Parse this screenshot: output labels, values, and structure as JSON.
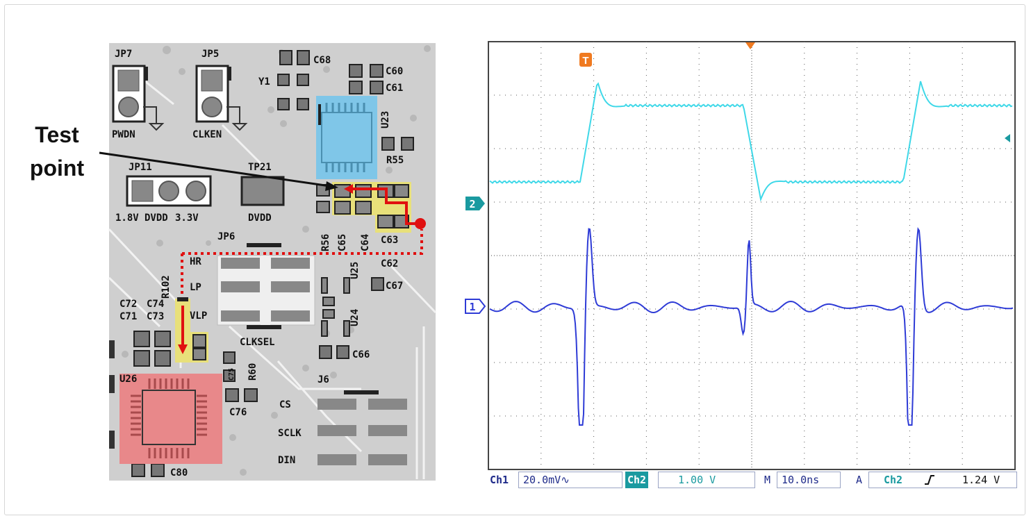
{
  "callout": {
    "line1": "Test",
    "line2": "point"
  },
  "board": {
    "refs": {
      "jp7": "JP7",
      "jp5": "JP5",
      "c68": "C68",
      "c60": "C60",
      "c61": "C61",
      "y1": "Y1",
      "pwdn": "PWDN",
      "clken": "CLKEN",
      "u23": "U23",
      "r55": "R55",
      "jp11": "JP11",
      "tp21": "TP21",
      "v18": "1.8V",
      "dvdd_a": "DVDD",
      "v33": "3.3V",
      "dvdd_b": "DVDD",
      "jp6": "JP6",
      "r56": "R56",
      "c65": "C65",
      "c64": "C64",
      "c63": "C63",
      "c62": "C62",
      "hr": "HR",
      "lp": "LP",
      "vlp": "VLP",
      "u25": "U25",
      "c67": "C67",
      "r102": "R102",
      "c72": "C72",
      "c74": "C74",
      "c71": "C71",
      "c73": "C73",
      "u24": "U24",
      "clksel": "CLKSEL",
      "c66": "C66",
      "u26": "U26",
      "r60": "R60",
      "c75": "C75",
      "c76": "C76",
      "j6": "J6",
      "cs": "CS",
      "sclk": "SCLK",
      "din": "DIN",
      "c80": "C80"
    },
    "colors": {
      "board": "#cfcfcf",
      "trace": "#f4f4f4",
      "highlight_yellow": "#e8e07a",
      "highlight_blue": "#7fc6e8",
      "highlight_red": "#e8888a",
      "arrow_red": "#e01010"
    }
  },
  "scope": {
    "trigger_marker": "T",
    "ch2_marker": "2",
    "ch1_marker": "1",
    "divisions": {
      "x": 10,
      "y": 8
    },
    "ch1": {
      "label": "Ch1",
      "scale": "20.0mV",
      "coupling_icon": "ac-coupling-icon",
      "color": "#2e3bd6"
    },
    "ch2": {
      "label": "Ch2",
      "scale": "1.00 V",
      "color": "#36d6e6"
    },
    "timebase": {
      "label": "M",
      "value": "10.0ns"
    },
    "trigger": {
      "label": "A",
      "source": "Ch2",
      "slope_icon": "rising-edge-icon",
      "level": "1.24 V"
    }
  }
}
